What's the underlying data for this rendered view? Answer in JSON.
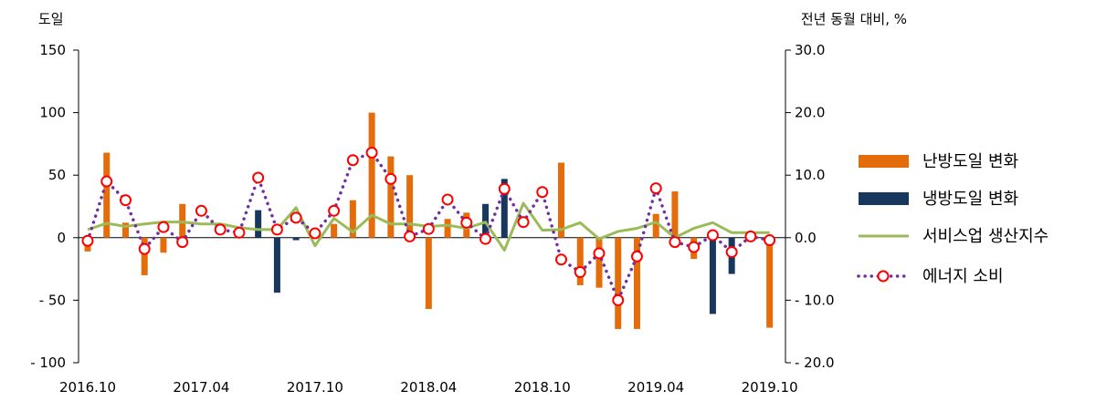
{
  "chart_data": {
    "type": "bar+line",
    "left_axis_label": "도일",
    "right_axis_label": "전년 동월 대비, %",
    "left_ylim": [
      -100,
      150
    ],
    "left_ticks": [
      "150",
      "100",
      "50",
      "0",
      "- 50",
      "- 100"
    ],
    "left_tick_values": [
      150,
      100,
      50,
      0,
      -50,
      -100
    ],
    "right_ylim": [
      -20,
      30
    ],
    "right_ticks": [
      "30.0",
      "20.0",
      "10.0",
      "0.0",
      "- 10.0",
      "- 20.0"
    ],
    "right_tick_values": [
      30,
      20,
      10,
      0,
      -10,
      -20
    ],
    "x_tick_labels": [
      "2016.10",
      "2017.04",
      "2017.10",
      "2018.04",
      "2018.10",
      "2019.04",
      "2019.10"
    ],
    "x_tick_indices": [
      0,
      6,
      12,
      18,
      24,
      30,
      36
    ],
    "months": [
      "2016.10",
      "2016.11",
      "2016.12",
      "2017.01",
      "2017.02",
      "2017.03",
      "2017.04",
      "2017.05",
      "2017.06",
      "2017.07",
      "2017.08",
      "2017.09",
      "2017.10",
      "2017.11",
      "2017.12",
      "2018.01",
      "2018.02",
      "2018.03",
      "2018.04",
      "2018.05",
      "2018.06",
      "2018.07",
      "2018.08",
      "2018.09",
      "2018.10",
      "2018.11",
      "2018.12",
      "2019.01",
      "2019.02",
      "2019.03",
      "2019.04",
      "2019.05",
      "2019.06",
      "2019.07",
      "2019.08",
      "2019.09",
      "2019.10"
    ],
    "series": [
      {
        "name": "난방도일 변화",
        "kind": "bar",
        "axis": "left",
        "color": "#e46c0a",
        "values": [
          -11,
          68,
          12,
          -30,
          -12,
          27,
          0,
          0,
          0,
          0,
          0,
          0,
          2,
          11,
          30,
          100,
          65,
          50,
          -57,
          15,
          20,
          0,
          0,
          0,
          0,
          60,
          -38,
          -40,
          -73,
          -73,
          19,
          37,
          -17,
          0,
          0,
          0,
          -72
        ]
      },
      {
        "name": "냉방도일 변화",
        "kind": "bar",
        "axis": "left",
        "color": "#17375e",
        "values": [
          0,
          0,
          0,
          0,
          0,
          0,
          0,
          0,
          0,
          22,
          -44,
          -2,
          0,
          0,
          0,
          0,
          0,
          0,
          0,
          0,
          0,
          27,
          47,
          0,
          0,
          0,
          0,
          0,
          0,
          0,
          0,
          0,
          0,
          -61,
          -29,
          0,
          0
        ]
      },
      {
        "name": "서비스업 생산지수",
        "kind": "line",
        "axis": "right",
        "color": "#9bbb59",
        "values": [
          1.3,
          2.3,
          1.8,
          2.2,
          2.5,
          2.5,
          2.2,
          2.2,
          1.6,
          1.3,
          1.3,
          4.8,
          -1.3,
          3.1,
          0.9,
          3.6,
          2.2,
          2.2,
          1.8,
          2.0,
          1.5,
          2.5,
          -2.0,
          5.5,
          1.2,
          1.3,
          2.4,
          -0.2,
          1.0,
          1.5,
          2.5,
          0.0,
          1.5,
          2.4,
          0.8,
          0.8,
          0.8
        ]
      },
      {
        "name": "에너지 소비",
        "kind": "line-dotted-markers",
        "axis": "right",
        "color": "#7030a0",
        "marker_color": "#ff0000",
        "values": [
          -0.5,
          9.0,
          6.0,
          -1.8,
          1.7,
          -0.7,
          4.3,
          1.3,
          0.8,
          9.6,
          1.3,
          3.2,
          0.7,
          4.3,
          12.4,
          13.6,
          9.4,
          0.2,
          1.4,
          6.1,
          2.4,
          -0.2,
          7.8,
          2.5,
          7.3,
          -3.5,
          -5.5,
          -2.5,
          -10.0,
          -3.0,
          7.9,
          -0.7,
          -1.5,
          0.4,
          -2.3,
          0.2,
          -0.4
        ]
      }
    ]
  }
}
